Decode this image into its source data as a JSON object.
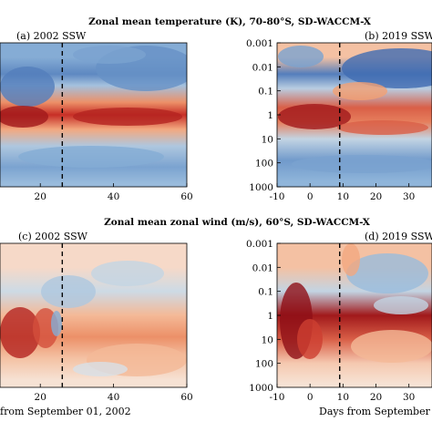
{
  "figure": {
    "row_titles": [
      "Zonal mean temperature (K), 70-80°S, SD-WACCM-X",
      "Zonal mean zonal wind (m/s), 60°S, SD-WACCM-X"
    ],
    "colors": {
      "cold_dark": "#2c5aa8",
      "cold": "#8fb5da",
      "neutral": "#f7f2ec",
      "warm": "#f2a073",
      "warm_dark": "#c72e26",
      "warm_darkest": "#8e0f16",
      "dashed_line": "#000000"
    }
  },
  "chart_data": [
    {
      "type": "heatmap",
      "title": "(a) 2002 SSW",
      "xlabel": "",
      "xticks": [
        "20",
        "40",
        "60"
      ],
      "xlim": [
        9,
        60
      ],
      "ylim": [
        1000,
        0.001
      ],
      "yscale": "log",
      "event_line_x": 26,
      "bands": [
        {
          "p": 0.004,
          "value": -0.55
        },
        {
          "p": 0.02,
          "value": -0.75
        },
        {
          "p": 0.06,
          "value": -0.4
        },
        {
          "p": 0.3,
          "value": 0.55
        },
        {
          "p": 1,
          "value": 0.85
        },
        {
          "p": 4,
          "value": 0.45
        },
        {
          "p": 20,
          "value": -0.35
        },
        {
          "p": 150,
          "value": -0.6
        },
        {
          "p": 700,
          "value": -0.45
        }
      ]
    },
    {
      "type": "heatmap",
      "title": "(b) 2019 SSW",
      "xlabel": "",
      "xticks": [
        "-10",
        "0",
        "10",
        "20",
        "30"
      ],
      "yticks": [
        "0.001",
        "0.01",
        "0.1",
        "1",
        "10",
        "100",
        "1000"
      ],
      "xlim": [
        -10,
        37
      ],
      "ylim": [
        1000,
        0.001
      ],
      "yscale": "log",
      "event_line_x": 9,
      "bands": [
        {
          "p": 0.004,
          "value": 0.3
        },
        {
          "p": 0.02,
          "value": -0.8
        },
        {
          "p": 0.08,
          "value": -0.3
        },
        {
          "p": 0.5,
          "value": 0.7
        },
        {
          "p": 2,
          "value": 0.6
        },
        {
          "p": 10,
          "value": -0.25
        },
        {
          "p": 80,
          "value": -0.65
        },
        {
          "p": 600,
          "value": -0.5
        }
      ]
    },
    {
      "type": "heatmap",
      "title": "(c) 2002 SSW",
      "xlabel": "from September 01, 2002",
      "xticks": [
        "20",
        "40",
        "60"
      ],
      "xlim": [
        9,
        60
      ],
      "ylim": [
        1000,
        0.001
      ],
      "yscale": "log",
      "event_line_x": 26,
      "bands": [
        {
          "p": 0.01,
          "value": 0.15
        },
        {
          "p": 0.1,
          "value": -0.2
        },
        {
          "p": 1,
          "value": 0.35
        },
        {
          "p": 8,
          "value": 0.55
        },
        {
          "p": 60,
          "value": 0.3
        },
        {
          "p": 500,
          "value": 0.1
        }
      ]
    },
    {
      "type": "heatmap",
      "title": "(d) 2019 SSW",
      "xlabel": "Days from September",
      "xticks": [
        "-10",
        "0",
        "10",
        "20",
        "30"
      ],
      "yticks": [
        "0.001",
        "0.01",
        "0.1",
        "1",
        "10",
        "100",
        "1000"
      ],
      "xlim": [
        -10,
        37
      ],
      "ylim": [
        1000,
        0.001
      ],
      "yscale": "log",
      "event_line_x": 9,
      "bands": [
        {
          "p": 0.01,
          "value": 0.3
        },
        {
          "p": 0.1,
          "value": -0.25
        },
        {
          "p": 1,
          "value": 0.95
        },
        {
          "p": 10,
          "value": 0.7
        },
        {
          "p": 100,
          "value": 0.25
        },
        {
          "p": 700,
          "value": 0.1
        }
      ]
    }
  ]
}
